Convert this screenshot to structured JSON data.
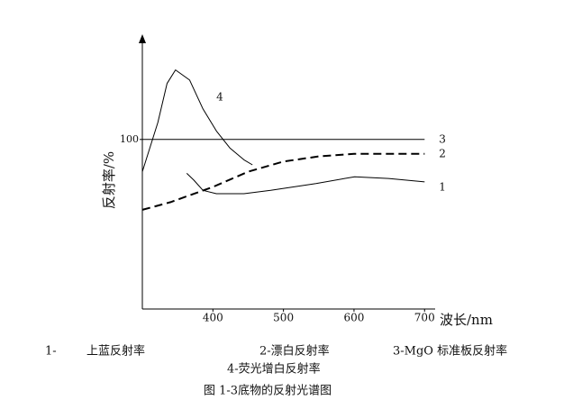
{
  "chart_data": {
    "type": "line",
    "xlabel": "波长/nm",
    "ylabel": "反射率/%",
    "xlim": [
      300,
      715
    ],
    "xticks": [
      400,
      500,
      600,
      700
    ],
    "ylim": [
      0,
      161
    ],
    "yticks": [
      100
    ],
    "grid": false,
    "series": [
      {
        "name": "1",
        "color": "#000000",
        "dash": false,
        "x": [
          363,
          373,
          386,
          405,
          444,
          482,
          546,
          601,
          649,
          700
        ],
        "values": [
          80,
          76,
          70,
          68,
          68,
          70,
          74,
          78,
          77,
          75
        ]
      },
      {
        "name": "2",
        "color": "#000000",
        "dash": true,
        "x": [
          300,
          340,
          400,
          450,
          500,
          550,
          600,
          700
        ],
        "values": [
          58.5,
          63,
          72,
          81,
          87,
          90,
          91.5,
          91.5
        ]
      },
      {
        "name": "3",
        "color": "#000000",
        "dash": false,
        "x": [
          300,
          700
        ],
        "values": [
          100,
          100
        ]
      },
      {
        "name": "4",
        "color": "#000000",
        "dash": false,
        "x": [
          300,
          322,
          335,
          347,
          367,
          386,
          405,
          424,
          444,
          456
        ],
        "values": [
          81,
          110,
          133,
          141,
          135,
          118,
          105,
          95,
          88,
          85
        ]
      }
    ],
    "notes": [
      "1-",
      "上蓝反射率",
      "2-漂白反射率",
      "3-MgO 标准板反射率",
      "4-荧光增白反射率"
    ],
    "caption": "图 1-3底物的反射光谱图"
  }
}
